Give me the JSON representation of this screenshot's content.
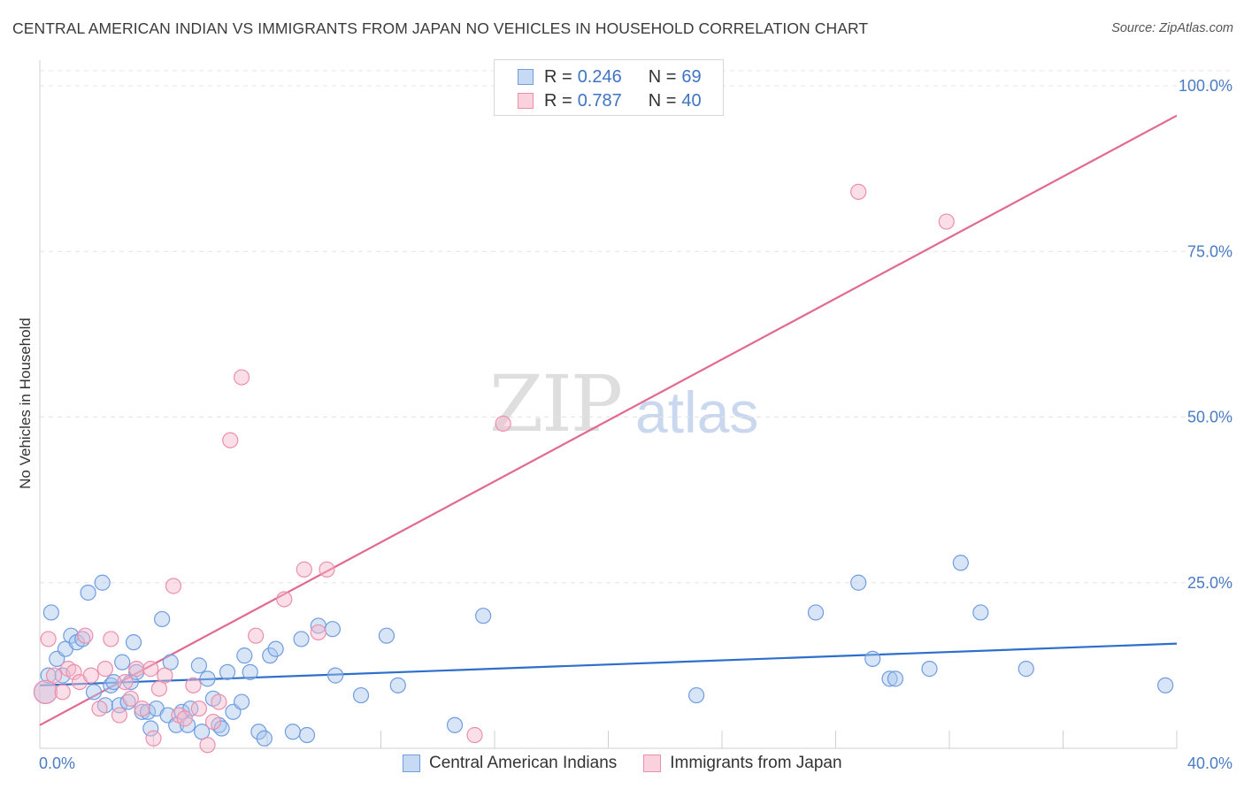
{
  "title": "CENTRAL AMERICAN INDIAN VS IMMIGRANTS FROM JAPAN NO VEHICLES IN HOUSEHOLD CORRELATION CHART",
  "source": "Source: ZipAtlas.com",
  "watermark": {
    "zip": "ZIP",
    "atlas": "atlas"
  },
  "legend_top": {
    "rows": [
      {
        "r_label": "R =",
        "r_value": "0.246",
        "n_label": "N =",
        "n_value": "69",
        "color": "#a9c5ee"
      },
      {
        "r_label": "R =",
        "r_value": "0.787",
        "n_label": "N =",
        "n_value": "40",
        "color": "#f6b9cb"
      }
    ]
  },
  "legend_bottom": {
    "items": [
      {
        "label": "Central American Indians",
        "color": "#a9c5ee"
      },
      {
        "label": "Immigrants from Japan",
        "color": "#f6b9cb"
      }
    ]
  },
  "chart_data": {
    "type": "scatter",
    "title": "CENTRAL AMERICAN INDIAN VS IMMIGRANTS FROM JAPAN NO VEHICLES IN HOUSEHOLD CORRELATION CHART",
    "xlabel": "",
    "ylabel": "No Vehicles in Household",
    "xlim": [
      0,
      40
    ],
    "ylim": [
      0,
      100
    ],
    "x_tick_labels": [
      "0.0%",
      "40.0%"
    ],
    "y_ticks": [
      25,
      50,
      75,
      100
    ],
    "y_tick_labels": [
      "25.0%",
      "50.0%",
      "75.0%",
      "100.0%"
    ],
    "grid": true,
    "series": [
      {
        "name": "Central American Indians",
        "color": "#a9c5ee",
        "stroke": "#6f9de0",
        "trend": {
          "x": [
            0,
            40
          ],
          "y": [
            9.5,
            15.8
          ],
          "color": "#2f6fcc"
        },
        "points": [
          {
            "x": 0.2,
            "y": 8.5,
            "big": true
          },
          {
            "x": 0.3,
            "y": 11.0
          },
          {
            "x": 0.4,
            "y": 20.5
          },
          {
            "x": 0.6,
            "y": 13.5
          },
          {
            "x": 0.8,
            "y": 11.0
          },
          {
            "x": 0.9,
            "y": 15.0
          },
          {
            "x": 1.1,
            "y": 17.0
          },
          {
            "x": 1.3,
            "y": 16.0
          },
          {
            "x": 1.5,
            "y": 16.5
          },
          {
            "x": 1.7,
            "y": 23.5
          },
          {
            "x": 1.9,
            "y": 8.5
          },
          {
            "x": 2.2,
            "y": 25.0
          },
          {
            "x": 2.3,
            "y": 6.5
          },
          {
            "x": 2.5,
            "y": 9.5
          },
          {
            "x": 2.6,
            "y": 10.0
          },
          {
            "x": 2.8,
            "y": 6.5
          },
          {
            "x": 2.9,
            "y": 13.0
          },
          {
            "x": 3.1,
            "y": 7.0
          },
          {
            "x": 3.2,
            "y": 10.0
          },
          {
            "x": 3.3,
            "y": 16.0
          },
          {
            "x": 3.4,
            "y": 11.5
          },
          {
            "x": 3.6,
            "y": 5.5
          },
          {
            "x": 3.8,
            "y": 5.5
          },
          {
            "x": 3.9,
            "y": 3.0
          },
          {
            "x": 4.1,
            "y": 6.0
          },
          {
            "x": 4.3,
            "y": 19.5
          },
          {
            "x": 4.5,
            "y": 5.0
          },
          {
            "x": 4.6,
            "y": 13.0
          },
          {
            "x": 4.8,
            "y": 3.5
          },
          {
            "x": 5.0,
            "y": 5.5
          },
          {
            "x": 5.2,
            "y": 3.5
          },
          {
            "x": 5.3,
            "y": 6.0
          },
          {
            "x": 5.6,
            "y": 12.5
          },
          {
            "x": 5.7,
            "y": 2.5
          },
          {
            "x": 5.9,
            "y": 10.5
          },
          {
            "x": 6.1,
            "y": 7.5
          },
          {
            "x": 6.3,
            "y": 3.5
          },
          {
            "x": 6.4,
            "y": 3.0
          },
          {
            "x": 6.6,
            "y": 11.5
          },
          {
            "x": 6.8,
            "y": 5.5
          },
          {
            "x": 7.1,
            "y": 7.0
          },
          {
            "x": 7.2,
            "y": 14.0
          },
          {
            "x": 7.4,
            "y": 11.5
          },
          {
            "x": 7.7,
            "y": 2.5
          },
          {
            "x": 7.9,
            "y": 1.5
          },
          {
            "x": 8.1,
            "y": 14.0
          },
          {
            "x": 8.3,
            "y": 15.0
          },
          {
            "x": 8.9,
            "y": 2.5
          },
          {
            "x": 9.2,
            "y": 16.5
          },
          {
            "x": 9.4,
            "y": 2.0
          },
          {
            "x": 9.8,
            "y": 18.5
          },
          {
            "x": 10.3,
            "y": 18.0
          },
          {
            "x": 10.4,
            "y": 11.0
          },
          {
            "x": 11.3,
            "y": 8.0
          },
          {
            "x": 12.2,
            "y": 17.0
          },
          {
            "x": 12.6,
            "y": 9.5
          },
          {
            "x": 14.6,
            "y": 3.5
          },
          {
            "x": 15.6,
            "y": 20.0
          },
          {
            "x": 23.1,
            "y": 8.0
          },
          {
            "x": 27.3,
            "y": 20.5
          },
          {
            "x": 28.8,
            "y": 25.0
          },
          {
            "x": 29.3,
            "y": 13.5
          },
          {
            "x": 29.9,
            "y": 10.5
          },
          {
            "x": 30.1,
            "y": 10.5
          },
          {
            "x": 31.3,
            "y": 12.0
          },
          {
            "x": 32.4,
            "y": 28.0
          },
          {
            "x": 33.1,
            "y": 20.5
          },
          {
            "x": 34.7,
            "y": 12.0
          },
          {
            "x": 39.6,
            "y": 9.5
          }
        ]
      },
      {
        "name": "Immigrants from Japan",
        "color": "#f6b9cb",
        "stroke": "#ec8fab",
        "trend": {
          "x": [
            0,
            40
          ],
          "y": [
            3.5,
            95.5
          ],
          "color": "#e2698f"
        },
        "points": [
          {
            "x": 0.2,
            "y": 8.5,
            "big": true
          },
          {
            "x": 0.3,
            "y": 16.5
          },
          {
            "x": 0.5,
            "y": 11.0
          },
          {
            "x": 0.8,
            "y": 8.5
          },
          {
            "x": 1.0,
            "y": 12.0
          },
          {
            "x": 1.2,
            "y": 11.5
          },
          {
            "x": 1.4,
            "y": 10.0
          },
          {
            "x": 1.6,
            "y": 17.0
          },
          {
            "x": 1.8,
            "y": 11.0
          },
          {
            "x": 2.1,
            "y": 6.0
          },
          {
            "x": 2.3,
            "y": 12.0
          },
          {
            "x": 2.5,
            "y": 16.5
          },
          {
            "x": 2.8,
            "y": 5.0
          },
          {
            "x": 3.0,
            "y": 10.0
          },
          {
            "x": 3.2,
            "y": 7.5
          },
          {
            "x": 3.4,
            "y": 12.0
          },
          {
            "x": 3.6,
            "y": 6.0
          },
          {
            "x": 3.9,
            "y": 12.0
          },
          {
            "x": 4.0,
            "y": 1.5
          },
          {
            "x": 4.2,
            "y": 9.0
          },
          {
            "x": 4.4,
            "y": 11.0
          },
          {
            "x": 4.7,
            "y": 24.5
          },
          {
            "x": 4.9,
            "y": 5.0
          },
          {
            "x": 5.1,
            "y": 4.5
          },
          {
            "x": 5.4,
            "y": 9.5
          },
          {
            "x": 5.6,
            "y": 6.0
          },
          {
            "x": 5.9,
            "y": 0.5
          },
          {
            "x": 6.1,
            "y": 4.0
          },
          {
            "x": 6.3,
            "y": 7.0
          },
          {
            "x": 6.7,
            "y": 46.5
          },
          {
            "x": 7.1,
            "y": 56.0
          },
          {
            "x": 7.6,
            "y": 17.0
          },
          {
            "x": 8.6,
            "y": 22.5
          },
          {
            "x": 9.3,
            "y": 27.0
          },
          {
            "x": 9.8,
            "y": 17.5
          },
          {
            "x": 10.1,
            "y": 27.0
          },
          {
            "x": 15.3,
            "y": 2.0
          },
          {
            "x": 16.3,
            "y": 49.0
          },
          {
            "x": 28.8,
            "y": 84.0
          },
          {
            "x": 31.9,
            "y": 79.5
          }
        ]
      }
    ]
  }
}
